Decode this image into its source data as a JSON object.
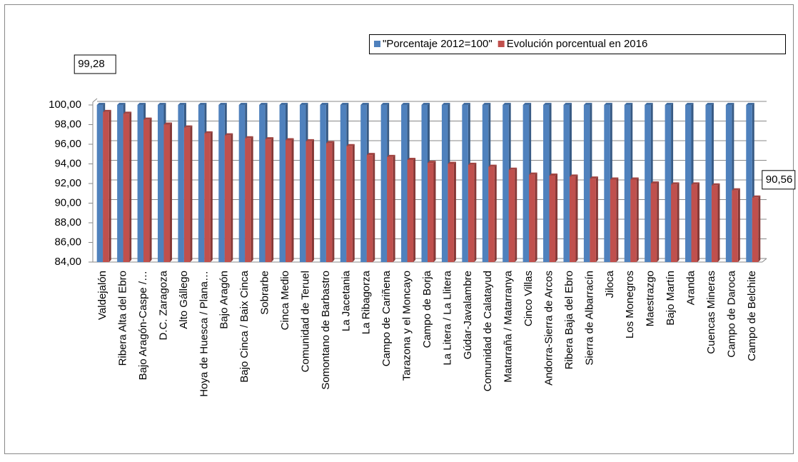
{
  "chart_data": {
    "type": "bar",
    "categories": [
      "Valdejalón",
      "Ribera Alta del Ebro",
      "Bajo Aragón-Caspe /…",
      "D.C. Zaragoza",
      "Alto Gállego",
      "Hoya de Huesca / Plana…",
      "Bajo Aragón",
      "Bajo Cinca / Baix Cinca",
      "Sobrarbe",
      "Cinca Medio",
      "Comunidad de Teruel",
      "Somontano de Barbastro",
      "La Jacetania",
      "La Ribagorza",
      "Campo de Cariñena",
      "Tarazona y el Moncayo",
      "Campo de Borja",
      "La Litera / La Llitera",
      "Gúdar-Javalambre",
      "Comunidad de Calatayud",
      "Matarraña / Matarranya",
      "Cinco Villas",
      "Andorra-Sierra de Arcos",
      "Ribera Baja del Ebro",
      "Sierra de Albarracín",
      "Jiloca",
      "Los Monegros",
      "Maestrazgo",
      "Bajo Martín",
      "Aranda",
      "Cuencas Mineras",
      "Campo de Daroca",
      "Campo de Belchite"
    ],
    "series": [
      {
        "name": "\"Porcentaje 2012=100\"",
        "color": "#4f81bd",
        "values": [
          100,
          100,
          100,
          100,
          100,
          100,
          100,
          100,
          100,
          100,
          100,
          100,
          100,
          100,
          100,
          100,
          100,
          100,
          100,
          100,
          100,
          100,
          100,
          100,
          100,
          100,
          100,
          100,
          100,
          100,
          100,
          100,
          100
        ]
      },
      {
        "name": "Evolución porcentual en 2016",
        "color": "#c0504d",
        "values": [
          99.28,
          99.1,
          98.5,
          98.0,
          97.7,
          97.1,
          96.9,
          96.6,
          96.5,
          96.4,
          96.3,
          96.1,
          95.8,
          94.9,
          94.7,
          94.4,
          94.1,
          94.0,
          93.9,
          93.7,
          93.4,
          92.9,
          92.8,
          92.7,
          92.5,
          92.4,
          92.4,
          92.0,
          91.9,
          91.9,
          91.8,
          91.3,
          90.56
        ],
        "value_labels": [
          "99,28",
          null,
          null,
          null,
          null,
          null,
          null,
          null,
          null,
          null,
          null,
          null,
          null,
          null,
          null,
          null,
          null,
          null,
          null,
          null,
          null,
          null,
          null,
          null,
          null,
          null,
          null,
          null,
          null,
          null,
          null,
          null,
          "90,56"
        ]
      }
    ],
    "ylim": [
      84,
      100
    ],
    "yticks": [
      {
        "value": 84,
        "label": "84,00"
      },
      {
        "value": 86,
        "label": "86,00"
      },
      {
        "value": 88,
        "label": "88,00"
      },
      {
        "value": 90,
        "label": "90,00"
      },
      {
        "value": 92,
        "label": "92,00"
      },
      {
        "value": 94,
        "label": "94,00"
      },
      {
        "value": 96,
        "label": "96,00"
      },
      {
        "value": 98,
        "label": "98,00"
      },
      {
        "value": 100,
        "label": "100,00"
      }
    ],
    "grid": true,
    "legend": "top-right"
  }
}
